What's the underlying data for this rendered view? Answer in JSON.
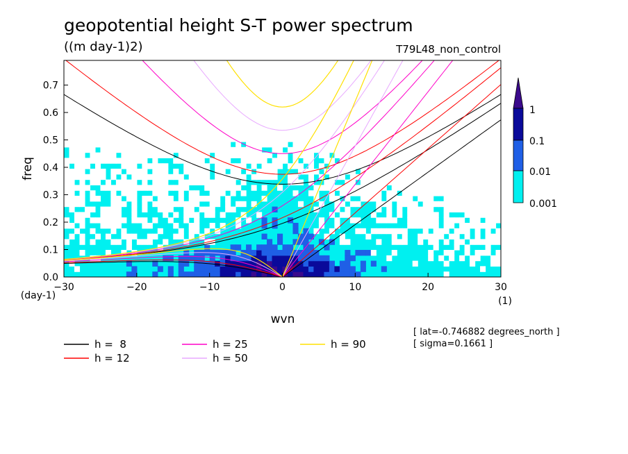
{
  "chart_data": {
    "type": "heatmap",
    "title": "geopotential height S-T power spectrum",
    "subtitle": "((m day-1)2)",
    "run_label": "T79L48_non_control",
    "xlabel": "wvn",
    "ylabel": "freq",
    "x_unit": "(1)",
    "y_unit": "(day-1)",
    "xlim": [
      -30,
      30
    ],
    "ylim": [
      0,
      0.79
    ],
    "xticks": [
      -30,
      -20,
      -10,
      0,
      10,
      20,
      30
    ],
    "yticks": [
      0.0,
      0.1,
      0.2,
      0.3,
      0.4,
      0.5,
      0.6,
      0.7
    ],
    "colorbar": {
      "labels": [
        "1",
        "0.1",
        "0.01",
        "0.001"
      ],
      "colors": {
        "above_1": "#3b0a8c",
        "0.1_1": "#0a0a9a",
        "0.01_0.1": "#1f5fe6",
        "0.001_0.01": "#00f0f0",
        "below_0.001": "#ffffff"
      }
    },
    "dispersion_curves": [
      {
        "label": "h =  8",
        "equiv_depth": 8,
        "color": "#000000"
      },
      {
        "label": "h = 12",
        "equiv_depth": 12,
        "color": "#ff0000"
      },
      {
        "label": "h = 25",
        "equiv_depth": 25,
        "color": "#ff00c8"
      },
      {
        "label": "h = 50",
        "equiv_depth": 50,
        "color": "#e8a8ff"
      },
      {
        "label": "h = 90",
        "equiv_depth": 90,
        "color": "#ffe000"
      }
    ],
    "annotations": [
      "[ lat=-0.746882 degrees_north ]",
      "[ sigma=0.1661 ]"
    ]
  }
}
